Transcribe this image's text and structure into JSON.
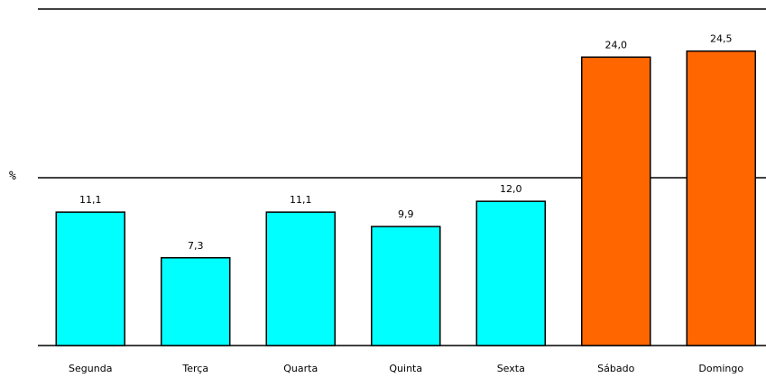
{
  "chart_data": {
    "type": "bar",
    "title": "",
    "xlabel": "",
    "ylabel": "%",
    "categories": [
      "Segunda",
      "Terça",
      "Quarta",
      "Quinta",
      "Sexta",
      "Sábado",
      "Domingo"
    ],
    "values": [
      11.1,
      7.3,
      11.1,
      9.9,
      12.0,
      24.0,
      24.5
    ],
    "data_labels": [
      "11,1",
      "7,3",
      "11,1",
      "9,9",
      "12,0",
      "24,0",
      "24,5"
    ],
    "colors": [
      "#00ffff",
      "#00ffff",
      "#00ffff",
      "#00ffff",
      "#00ffff",
      "#ff6600",
      "#ff6600"
    ],
    "ylim": [
      0,
      28
    ],
    "gridlines": [
      14,
      28
    ],
    "legend": "none"
  }
}
